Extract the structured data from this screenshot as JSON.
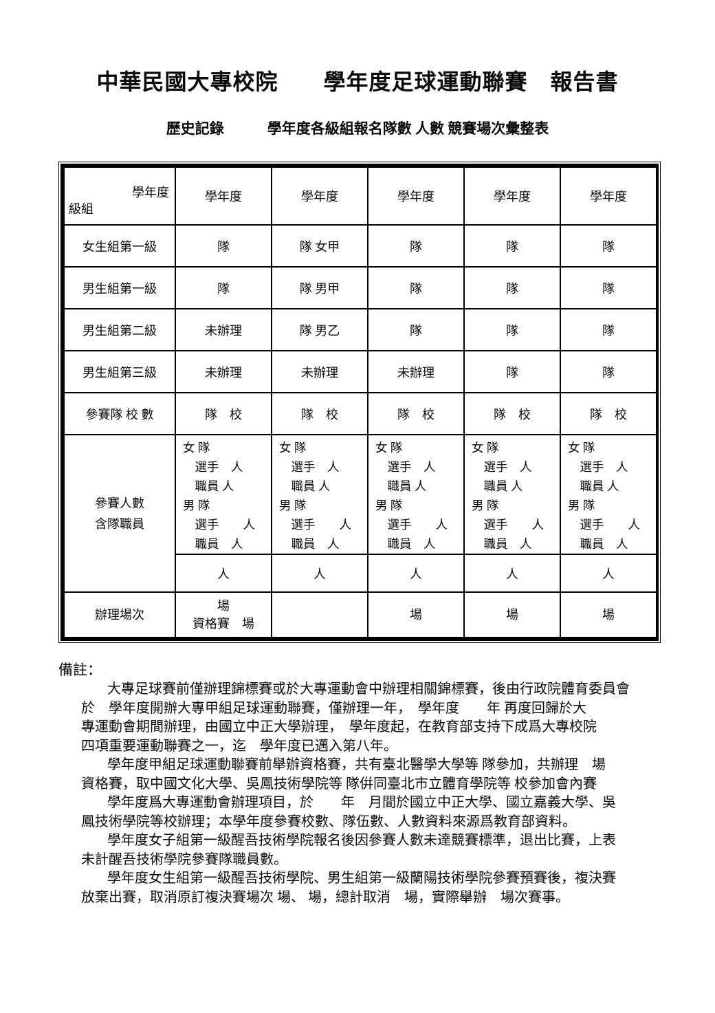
{
  "page": {
    "title": "中華民國大專校院　　學年度足球運動聯賽　報告書",
    "subtitle": "歷史記錄　　　學年度各級組報名隊數 人數 競賽場次彙整表"
  },
  "table": {
    "corner": {
      "top_right": "學年度",
      "bottom_left": "級組"
    },
    "col_headers": [
      "學年度",
      "學年度",
      "學年度",
      "學年度",
      "學年度"
    ],
    "rows": [
      {
        "label": "女生組第一級",
        "cells": [
          "隊",
          "隊 女甲",
          "隊",
          "隊",
          "隊"
        ]
      },
      {
        "label": "男生組第一級",
        "cells": [
          "隊",
          "隊 男甲",
          "隊",
          "隊",
          "隊"
        ]
      },
      {
        "label": "男生組第二級",
        "cells": [
          "未辦理",
          "隊 男乙",
          "隊",
          "隊",
          "隊"
        ]
      },
      {
        "label": "男生組第三級",
        "cells": [
          "未辦理",
          "未辦理",
          "未辦理",
          "隊",
          "隊"
        ]
      },
      {
        "label": "參賽隊 校 數",
        "cells": [
          "隊　校",
          "隊　校",
          "隊　校",
          "隊　校",
          "隊　校"
        ]
      }
    ],
    "participants": {
      "label_line1": "參賽人數",
      "label_line2": "含隊職員",
      "lines": [
        "女 隊",
        "　選手　人",
        "　職員 人",
        "男 隊",
        "　選手　　人",
        "　職員　人"
      ],
      "total": "人"
    },
    "sessions": {
      "label": "辦理場次",
      "col1_line1": "場",
      "col1_line2": "資格賽　場",
      "col2": "",
      "col3": "場",
      "col4": "場",
      "col5": "場"
    }
  },
  "notes": {
    "heading": "備註：",
    "p1": [
      "大專足球賽前僅辦理錦標賽或於大專運動會中辦理相關錦標賽，後由行政院體育委員會",
      "於　學年度開辦大專甲組足球運動聯賽，僅辦理一年，　學年度　　年 再度回歸於大",
      "專運動會期間辦理，由國立中正大學辦理，　學年度起，在教育部支持下成爲大專校院",
      "四項重要運動聯賽之一，迄　學年度已邁入第八年。"
    ],
    "p2": [
      "學年度甲組足球運動聯賽前舉辦資格賽，共有臺北醫學大學等 隊參加，共辦理　場",
      "資格賽，取中國文化大學、吳鳳技術學院等 隊倂同臺北市立體育學院等 校參加會內賽"
    ],
    "p3": [
      "學年度爲大專運動會辦理項目，於　　年　月間於國立中正大學、國立嘉義大學、吳",
      "鳳技術學院等校辦理；本學年度參賽校數、隊伍數、人數資料來源爲教育部資料。"
    ],
    "p4": [
      "學年度女子組第一級醒吾技術學院報名後因參賽人數未達競賽標準，退出比賽，上表",
      "未計醒吾技術學院參賽隊職員數。"
    ],
    "p5": [
      "學年度女生組第一級醒吾技術學院、男生組第一級蘭陽技術學院參賽預賽後，複決賽",
      "放棄出賽，取消原訂複決賽場次 場、 場，總計取消　場，實際舉辦　場次賽事。"
    ]
  }
}
